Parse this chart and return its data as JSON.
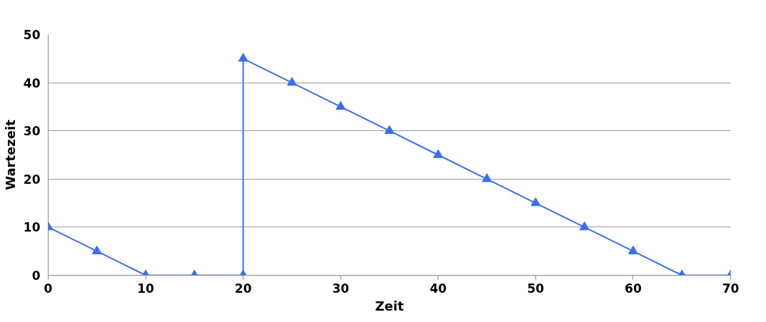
{
  "chart_data": {
    "type": "line",
    "xlabel": "Zeit",
    "ylabel": "Wartezeit",
    "x": [
      0,
      5,
      10,
      15,
      20,
      20,
      25,
      30,
      35,
      40,
      45,
      50,
      55,
      60,
      65,
      70
    ],
    "series": [
      {
        "color": "#3b6ff0",
        "values": [
          10,
          5,
          0,
          0,
          0,
          45,
          40,
          35,
          30,
          25,
          20,
          15,
          10,
          5,
          0,
          0
        ]
      }
    ],
    "xlim": [
      0,
      70
    ],
    "ylim": [
      0,
      50
    ],
    "xticks": [
      0,
      10,
      20,
      30,
      40,
      50,
      60,
      70
    ],
    "yticks": [
      0,
      10,
      20,
      30,
      40,
      50
    ],
    "grid": "y",
    "marker": "triangle",
    "line_style": "solid"
  }
}
